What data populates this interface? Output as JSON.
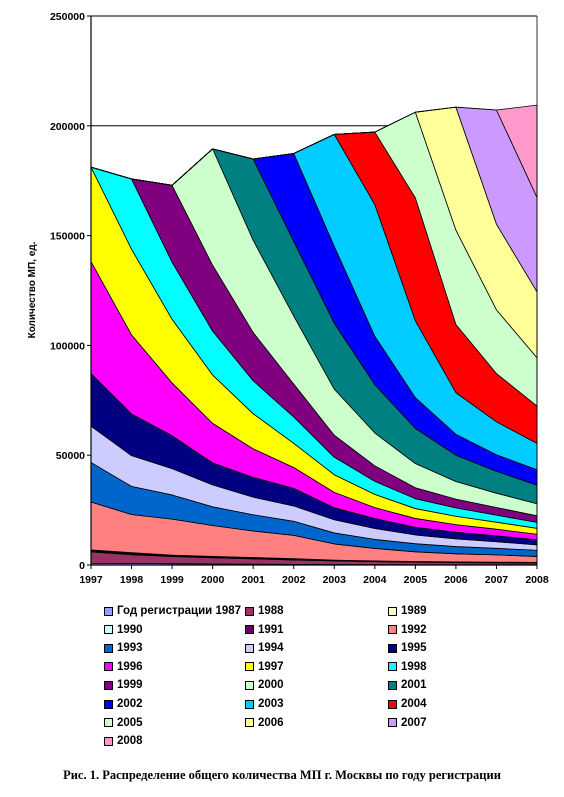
{
  "caption": "Рис. 1. Распределение общего количества МП г. Москвы по году регистрации",
  "chart_data": {
    "type": "area",
    "stacked": true,
    "ylabel": "Количество МП, ед.",
    "xlabel": "",
    "ylim": [
      0,
      250000
    ],
    "yticks": [
      "0",
      "50000",
      "100000",
      "150000",
      "200000",
      "250000"
    ],
    "x": [
      "1997",
      "1998",
      "1999",
      "2000",
      "2001",
      "2002",
      "2003",
      "2004",
      "2005",
      "2006",
      "2007",
      "2008"
    ],
    "grid": "horizontal at 200000 and 250000",
    "legend_placement": "bottom",
    "series": [
      {
        "name": "Год регистрации 1987",
        "color": "#9999FF",
        "values": [
          800,
          700,
          600,
          500,
          400,
          300,
          200,
          150,
          100,
          100,
          100,
          100
        ]
      },
      {
        "name": "1988",
        "color": "#993366",
        "values": [
          5200,
          4000,
          3300,
          2800,
          2400,
          2000,
          1700,
          1400,
          1200,
          1000,
          900,
          800
        ]
      },
      {
        "name": "1989",
        "color": "#FFFFCC",
        "values": [
          300,
          300,
          200,
          200,
          200,
          200,
          100,
          100,
          100,
          100,
          100,
          100
        ]
      },
      {
        "name": "1990",
        "color": "#CCFFFF",
        "values": [
          300,
          300,
          200,
          200,
          200,
          200,
          100,
          100,
          100,
          100,
          100,
          100
        ]
      },
      {
        "name": "1991",
        "color": "#660066",
        "values": [
          300,
          300,
          200,
          200,
          200,
          200,
          100,
          100,
          100,
          100,
          100,
          100
        ]
      },
      {
        "name": "1992",
        "color": "#FF8080",
        "values": [
          21800,
          17400,
          16400,
          14100,
          12100,
          10600,
          7400,
          5700,
          4400,
          3700,
          3300,
          2700
        ]
      },
      {
        "name": "1993",
        "color": "#0066CC",
        "values": [
          18000,
          12800,
          11000,
          8500,
          7400,
          6400,
          5000,
          4100,
          3700,
          3300,
          3000,
          2800
        ]
      },
      {
        "name": "1994",
        "color": "#CCCCFF",
        "values": [
          16500,
          14000,
          12000,
          10000,
          8000,
          7000,
          6000,
          5000,
          4000,
          3500,
          3000,
          2500
        ]
      },
      {
        "name": "1995",
        "color": "#000080",
        "values": [
          24000,
          19000,
          15000,
          10000,
          9000,
          8000,
          5500,
          4500,
          3500,
          3000,
          2700,
          2300
        ]
      },
      {
        "name": "1996",
        "color": "#FF00FF",
        "values": [
          51000,
          36000,
          24000,
          18000,
          13000,
          9500,
          7000,
          5000,
          4000,
          3500,
          3000,
          2500
        ]
      },
      {
        "name": "1997",
        "color": "#FFFF00",
        "values": [
          43000,
          39000,
          29000,
          22000,
          16000,
          11000,
          8000,
          6000,
          4500,
          3800,
          3200,
          2700
        ]
      },
      {
        "name": "1998",
        "color": "#00FFFF",
        "values": [
          0,
          32000,
          26000,
          20000,
          15000,
          12000,
          8000,
          6000,
          4500,
          3800,
          3200,
          2700
        ]
      },
      {
        "name": "1999",
        "color": "#800080",
        "values": [
          0,
          0,
          35000,
          30000,
          22000,
          15000,
          10000,
          7000,
          5000,
          4000,
          3500,
          3000
        ]
      },
      {
        "name": "2000",
        "color": "#CCFFCC",
        "values": [
          0,
          0,
          0,
          53000,
          42000,
          31000,
          21000,
          15000,
          11000,
          8000,
          6500,
          5500
        ]
      },
      {
        "name": "2001",
        "color": "#008080",
        "values": [
          0,
          0,
          0,
          0,
          37000,
          34000,
          30000,
          22000,
          16000,
          12000,
          10000,
          8500
        ]
      },
      {
        "name": "2002",
        "color": "#0000FF",
        "values": [
          0,
          0,
          0,
          0,
          0,
          40000,
          35000,
          22000,
          14000,
          9500,
          7500,
          7000
        ]
      },
      {
        "name": "2003",
        "color": "#00CCFF",
        "values": [
          0,
          0,
          0,
          0,
          0,
          0,
          51000,
          60000,
          35000,
          19000,
          15000,
          12000
        ]
      },
      {
        "name": "2004",
        "color": "#FF0000",
        "values": [
          0,
          0,
          0,
          0,
          0,
          0,
          0,
          33000,
          56000,
          31000,
          22000,
          17000
        ]
      },
      {
        "name": "2005",
        "color": "#CCFFCC",
        "values": [
          0,
          0,
          0,
          0,
          0,
          0,
          0,
          0,
          39000,
          43000,
          29000,
          22000
        ]
      },
      {
        "name": "2006",
        "color": "#FFFF99",
        "values": [
          0,
          0,
          0,
          0,
          0,
          0,
          0,
          0,
          0,
          56000,
          39000,
          30000
        ]
      },
      {
        "name": "2007",
        "color": "#CC99FF",
        "values": [
          0,
          0,
          0,
          0,
          0,
          0,
          0,
          0,
          0,
          0,
          52000,
          43000
        ]
      },
      {
        "name": "2008",
        "color": "#FF99CC",
        "values": [
          0,
          0,
          0,
          0,
          0,
          0,
          0,
          0,
          0,
          0,
          0,
          42000
        ]
      }
    ]
  }
}
